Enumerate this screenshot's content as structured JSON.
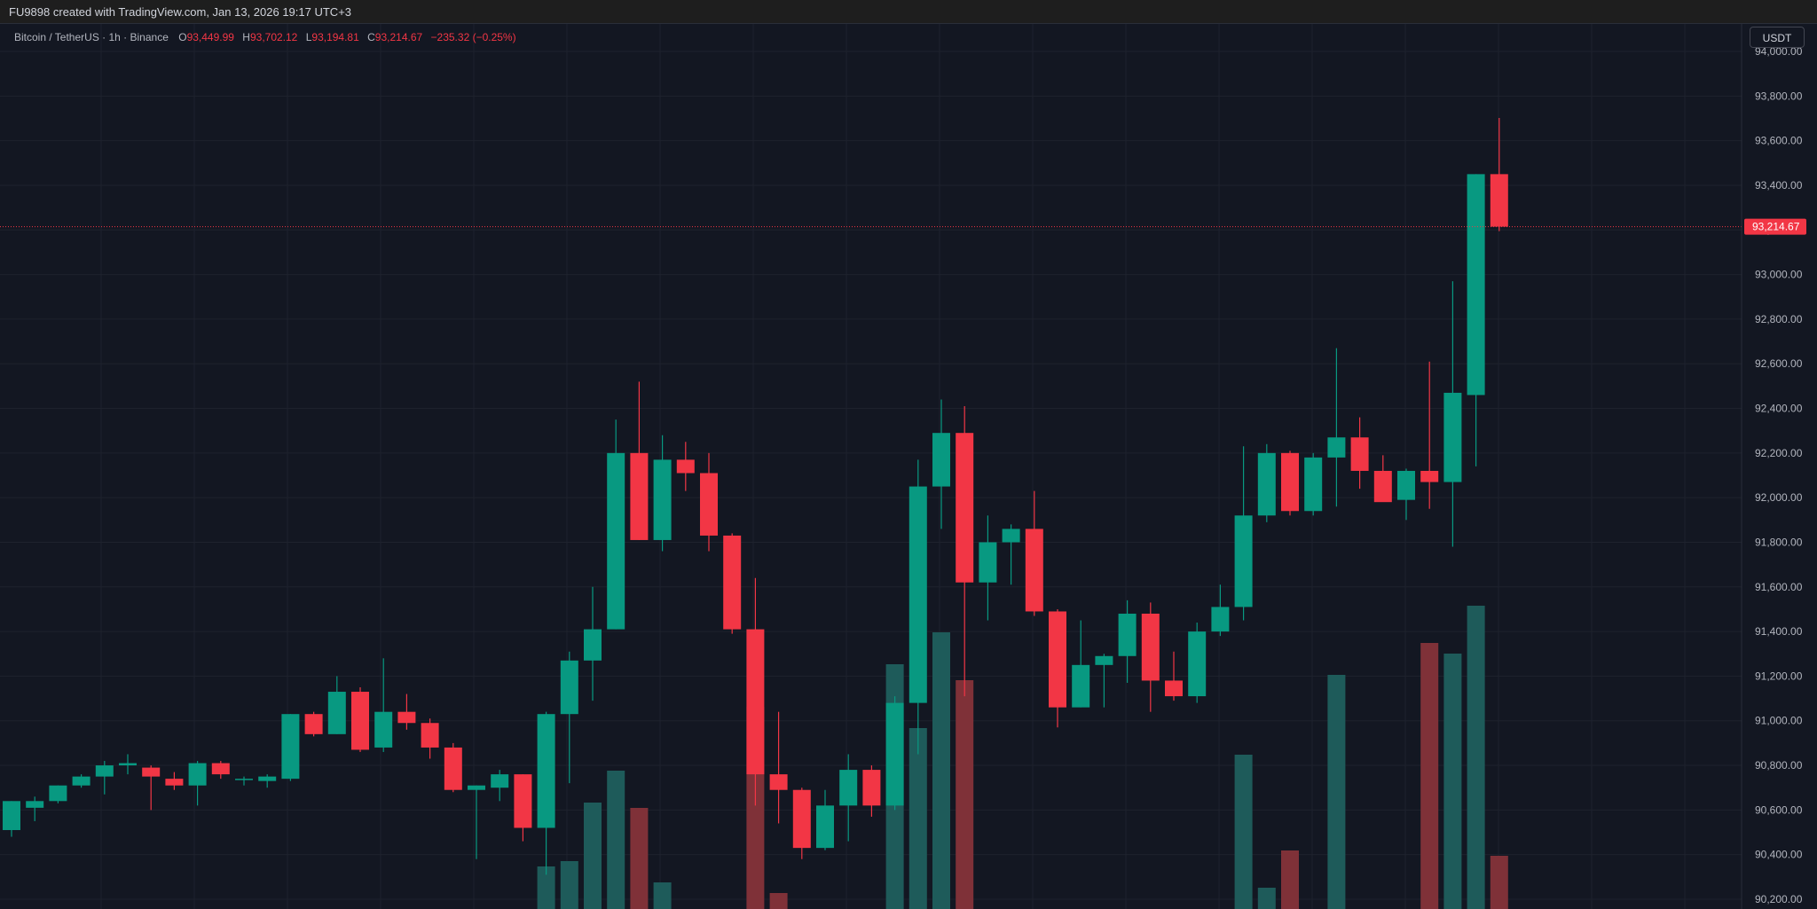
{
  "header": {
    "credit": "FU9898 created with TradingView.com, Jan 13, 2026 19:17 UTC+3"
  },
  "legend": {
    "symbol": "Bitcoin / TetherUS · 1h · Binance",
    "o_label": "O",
    "o_value": "93,449.99",
    "h_label": "H",
    "h_value": "93,702.12",
    "l_label": "L",
    "l_value": "93,194.81",
    "c_label": "C",
    "c_value": "93,214.67",
    "change": "−235.32 (−0.25%)"
  },
  "price_axis": {
    "currency": "USDT",
    "last_price_label": "93,214.67"
  },
  "colors": {
    "background": "#131722",
    "grid": "#1e222d",
    "up": "#089981",
    "down": "#f23645",
    "volume_up": "#1e5b5a",
    "volume_down": "#7f3138",
    "axis_text": "#b2b5be"
  },
  "chart_data": {
    "type": "candlestick",
    "interval": "1h",
    "ylim": [
      90150,
      94050
    ],
    "y_ticks": [
      {
        "value": 94000,
        "label": "94,000.00"
      },
      {
        "value": 93800,
        "label": "93,800.00"
      },
      {
        "value": 93600,
        "label": "93,600.00"
      },
      {
        "value": 93400,
        "label": "93,400.00"
      },
      {
        "value": 93200,
        "label": "93,200.00"
      },
      {
        "value": 93000,
        "label": "93,000.00"
      },
      {
        "value": 92800,
        "label": "92,800.00"
      },
      {
        "value": 92600,
        "label": "92,600.00"
      },
      {
        "value": 92400,
        "label": "92,400.00"
      },
      {
        "value": 92200,
        "label": "92,200.00"
      },
      {
        "value": 92000,
        "label": "92,000.00"
      },
      {
        "value": 91800,
        "label": "91,800.00"
      },
      {
        "value": 91600,
        "label": "91,600.00"
      },
      {
        "value": 91400,
        "label": "91,400.00"
      },
      {
        "value": 91200,
        "label": "91,200.00"
      },
      {
        "value": 91000,
        "label": "91,000.00"
      },
      {
        "value": 90800,
        "label": "90,800.00"
      },
      {
        "value": 90600,
        "label": "90,600.00"
      },
      {
        "value": 90400,
        "label": "90,400.00"
      },
      {
        "value": 90200,
        "label": "90,200.00"
      }
    ],
    "last_price": 93214.67,
    "candles": [
      {
        "o": 90510,
        "h": 90640,
        "l": 90480,
        "c": 90640,
        "v": 0
      },
      {
        "o": 90610,
        "h": 90660,
        "l": 90550,
        "c": 90640,
        "v": 0
      },
      {
        "o": 90640,
        "h": 90710,
        "l": 90630,
        "c": 90710,
        "v": 0
      },
      {
        "o": 90710,
        "h": 90760,
        "l": 90700,
        "c": 90750,
        "v": 0
      },
      {
        "o": 90750,
        "h": 90820,
        "l": 90670,
        "c": 90800,
        "v": 0
      },
      {
        "o": 90800,
        "h": 90850,
        "l": 90760,
        "c": 90810,
        "v": 0
      },
      {
        "o": 90790,
        "h": 90800,
        "l": 90600,
        "c": 90750,
        "v": 0
      },
      {
        "o": 90740,
        "h": 90770,
        "l": 90690,
        "c": 90710,
        "v": 0
      },
      {
        "o": 90710,
        "h": 90820,
        "l": 90620,
        "c": 90810,
        "v": 0
      },
      {
        "o": 90810,
        "h": 90820,
        "l": 90740,
        "c": 90760,
        "v": 0
      },
      {
        "o": 90740,
        "h": 90750,
        "l": 90710,
        "c": 90740,
        "v": 0
      },
      {
        "o": 90730,
        "h": 90760,
        "l": 90700,
        "c": 90750,
        "v": 0
      },
      {
        "o": 90740,
        "h": 91030,
        "l": 90730,
        "c": 91030,
        "v": 0
      },
      {
        "o": 91030,
        "h": 91040,
        "l": 90930,
        "c": 90940,
        "v": 0
      },
      {
        "o": 90940,
        "h": 91200,
        "l": 90940,
        "c": 91130,
        "v": 0
      },
      {
        "o": 91130,
        "h": 91150,
        "l": 90860,
        "c": 90870,
        "v": 0
      },
      {
        "o": 90880,
        "h": 91280,
        "l": 90860,
        "c": 91040,
        "v": 0
      },
      {
        "o": 91040,
        "h": 91120,
        "l": 90960,
        "c": 90990,
        "v": 0
      },
      {
        "o": 90990,
        "h": 91010,
        "l": 90830,
        "c": 90880,
        "v": 0
      },
      {
        "o": 90880,
        "h": 90900,
        "l": 90680,
        "c": 90690,
        "v": 0
      },
      {
        "o": 90690,
        "h": 90710,
        "l": 90380,
        "c": 90710,
        "v": 0
      },
      {
        "o": 90700,
        "h": 90780,
        "l": 90640,
        "c": 90760,
        "v": 0
      },
      {
        "o": 90760,
        "h": 90760,
        "l": 90460,
        "c": 90520,
        "v": 0
      },
      {
        "o": 90520,
        "h": 91040,
        "l": 90310,
        "c": 91030,
        "v": 80
      },
      {
        "o": 91030,
        "h": 91310,
        "l": 90720,
        "c": 91270,
        "v": 90
      },
      {
        "o": 91270,
        "h": 91600,
        "l": 91090,
        "c": 91410,
        "v": 200
      },
      {
        "o": 91410,
        "h": 92350,
        "l": 91410,
        "c": 92200,
        "v": 260
      },
      {
        "o": 92200,
        "h": 92520,
        "l": 91810,
        "c": 91810,
        "v": 190
      },
      {
        "o": 91810,
        "h": 92280,
        "l": 91760,
        "c": 92170,
        "v": 50
      },
      {
        "o": 92170,
        "h": 92250,
        "l": 92030,
        "c": 92110,
        "v": 0
      },
      {
        "o": 92110,
        "h": 92200,
        "l": 91760,
        "c": 91830,
        "v": 0
      },
      {
        "o": 91830,
        "h": 91840,
        "l": 91390,
        "c": 91410,
        "v": 0
      },
      {
        "o": 91410,
        "h": 91640,
        "l": 90620,
        "c": 90760,
        "v": 380
      },
      {
        "o": 90760,
        "h": 91040,
        "l": 90540,
        "c": 90690,
        "v": 30
      },
      {
        "o": 90690,
        "h": 90700,
        "l": 90380,
        "c": 90430,
        "v": 0
      },
      {
        "o": 90430,
        "h": 90690,
        "l": 90420,
        "c": 90620,
        "v": 0
      },
      {
        "o": 90620,
        "h": 90850,
        "l": 90460,
        "c": 90780,
        "v": 0
      },
      {
        "o": 90780,
        "h": 90800,
        "l": 90570,
        "c": 90620,
        "v": 0
      },
      {
        "o": 90620,
        "h": 91110,
        "l": 90600,
        "c": 91080,
        "v": 460
      },
      {
        "o": 91080,
        "h": 92170,
        "l": 90850,
        "c": 92050,
        "v": 340
      },
      {
        "o": 92050,
        "h": 92440,
        "l": 91860,
        "c": 92290,
        "v": 520
      },
      {
        "o": 92290,
        "h": 92410,
        "l": 91110,
        "c": 91620,
        "v": 430
      },
      {
        "o": 91620,
        "h": 91920,
        "l": 91450,
        "c": 91800,
        "v": 0
      },
      {
        "o": 91800,
        "h": 91880,
        "l": 91610,
        "c": 91860,
        "v": 0
      },
      {
        "o": 91860,
        "h": 92030,
        "l": 91470,
        "c": 91490,
        "v": 0
      },
      {
        "o": 91490,
        "h": 91500,
        "l": 90970,
        "c": 91060,
        "v": 0
      },
      {
        "o": 91060,
        "h": 91450,
        "l": 91060,
        "c": 91250,
        "v": 0
      },
      {
        "o": 91250,
        "h": 91300,
        "l": 91060,
        "c": 91290,
        "v": 0
      },
      {
        "o": 91290,
        "h": 91540,
        "l": 91170,
        "c": 91480,
        "v": 0
      },
      {
        "o": 91480,
        "h": 91530,
        "l": 91040,
        "c": 91180,
        "v": 0
      },
      {
        "o": 91180,
        "h": 91310,
        "l": 91090,
        "c": 91110,
        "v": 0
      },
      {
        "o": 91110,
        "h": 91440,
        "l": 91080,
        "c": 91400,
        "v": 0
      },
      {
        "o": 91400,
        "h": 91610,
        "l": 91380,
        "c": 91510,
        "v": 0
      },
      {
        "o": 91510,
        "h": 92230,
        "l": 91450,
        "c": 91920,
        "v": 290
      },
      {
        "o": 91920,
        "h": 92240,
        "l": 91890,
        "c": 92200,
        "v": 40
      },
      {
        "o": 92200,
        "h": 92210,
        "l": 91920,
        "c": 91940,
        "v": 110
      },
      {
        "o": 91940,
        "h": 92200,
        "l": 91920,
        "c": 92180,
        "v": 0
      },
      {
        "o": 92180,
        "h": 92670,
        "l": 91960,
        "c": 92270,
        "v": 440
      },
      {
        "o": 92270,
        "h": 92360,
        "l": 92040,
        "c": 92120,
        "v": 0
      },
      {
        "o": 92120,
        "h": 92190,
        "l": 91990,
        "c": 91980,
        "v": 0
      },
      {
        "o": 91990,
        "h": 92130,
        "l": 91900,
        "c": 92120,
        "v": 0
      },
      {
        "o": 92120,
        "h": 92610,
        "l": 91950,
        "c": 92070,
        "v": 500
      },
      {
        "o": 92070,
        "h": 92970,
        "l": 91780,
        "c": 92470,
        "v": 480
      },
      {
        "o": 92460,
        "h": 93450,
        "l": 92140,
        "c": 93450,
        "v": 570
      },
      {
        "o": 93449.99,
        "h": 93702.12,
        "l": 93194.81,
        "c": 93214.67,
        "v": 100
      }
    ]
  }
}
